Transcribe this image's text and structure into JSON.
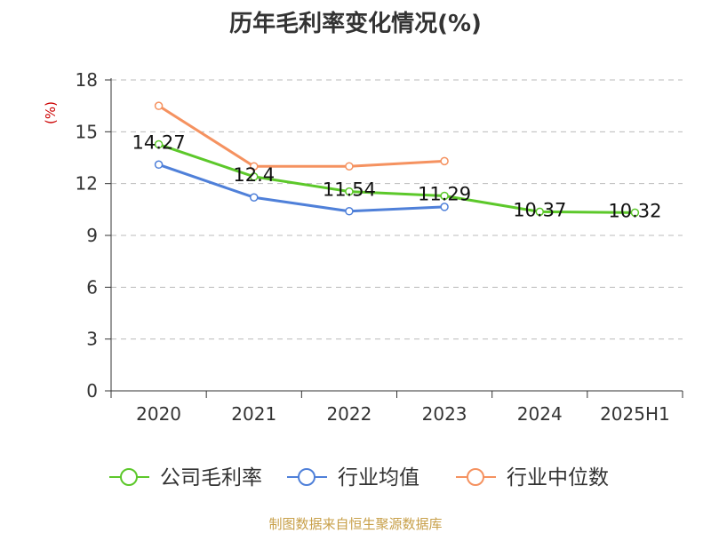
{
  "title": "历年毛利率变化情况(%)",
  "footer": "制图数据来自恒生聚源数据库",
  "chart_data": {
    "type": "line",
    "title": "历年毛利率变化情况(%)",
    "ylabel": "(%)",
    "xlabel": "",
    "categories": [
      "2020",
      "2021",
      "2022",
      "2023",
      "2024",
      "2025H1"
    ],
    "ylim": [
      0,
      18
    ],
    "yticks": [
      0,
      3,
      6,
      9,
      12,
      15,
      18
    ],
    "grid": true,
    "legend_position": "bottom",
    "series": [
      {
        "name": "公司毛利率",
        "color": "#5cc82a",
        "values": [
          14.27,
          12.4,
          11.54,
          11.29,
          10.37,
          10.32
        ],
        "labels": [
          "14.27",
          "12.4",
          "11.54",
          "11.29",
          "10.37",
          "10.32"
        ]
      },
      {
        "name": "行业均值",
        "color": "#4f80d9",
        "values": [
          13.1,
          11.2,
          10.4,
          10.65,
          null,
          null
        ]
      },
      {
        "name": "行业中位数",
        "color": "#f59260",
        "values": [
          16.5,
          13.0,
          13.0,
          13.3,
          null,
          null
        ]
      }
    ]
  }
}
